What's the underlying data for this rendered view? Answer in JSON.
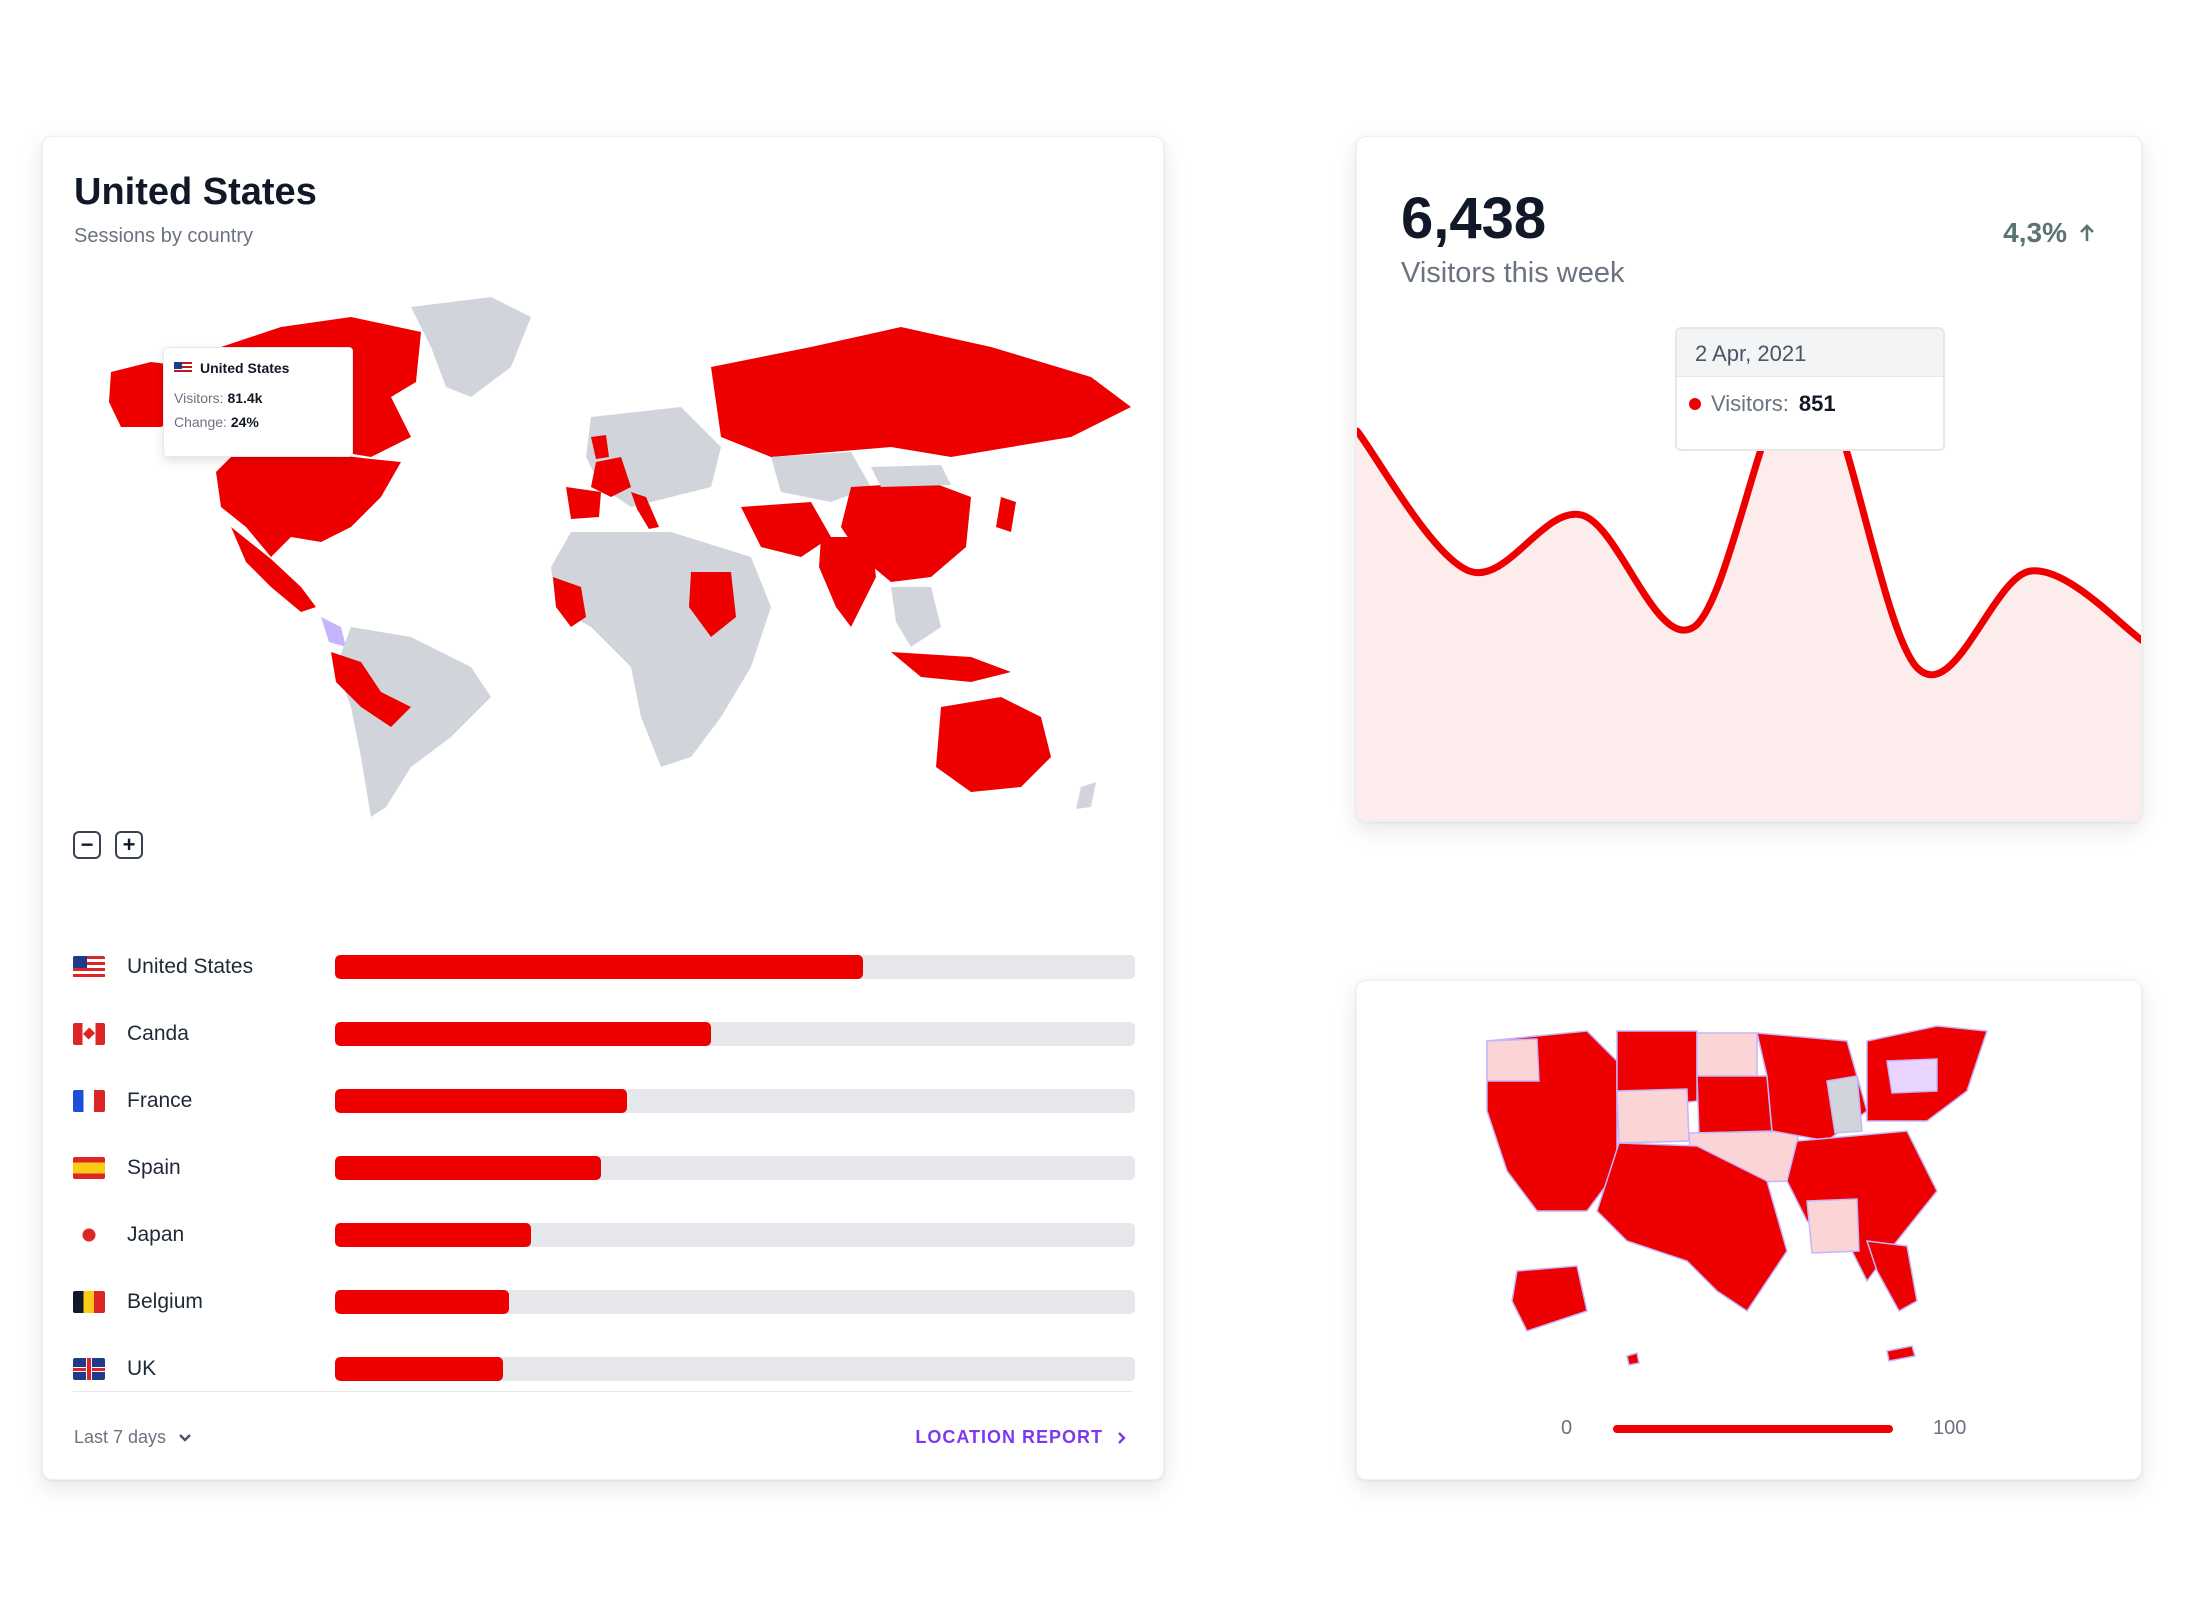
{
  "geo_card": {
    "title": "United States",
    "subtitle": "Sessions by country",
    "tooltip": {
      "country": "United States",
      "visitors_label": "Visitors:",
      "visitors_value": "81.4k",
      "change_label": "Change:",
      "change_value": "24%"
    },
    "zoom_out_label": "−",
    "zoom_in_label": "+",
    "countries": [
      {
        "name": "United States",
        "flag": "us-flag-icon",
        "share": 0.66
      },
      {
        "name": "Canda",
        "flag": "ca-flag-icon",
        "share": 0.47
      },
      {
        "name": "France",
        "flag": "fr-flag-icon",
        "share": 0.365
      },
      {
        "name": "Spain",
        "flag": "es-flag-icon",
        "share": 0.333
      },
      {
        "name": "Japan",
        "flag": "jp-flag-icon",
        "share": 0.245
      },
      {
        "name": "Belgium",
        "flag": "be-flag-icon",
        "share": 0.218
      },
      {
        "name": "UK",
        "flag": "uk-flag-icon",
        "share": 0.21
      }
    ],
    "range_label": "Last 7 days",
    "report_label": "LOCATION REPORT",
    "accent_color": "#ee0000",
    "link_color": "#7c3aed"
  },
  "visitors_card": {
    "value": "6,438",
    "label": "Visitors this week",
    "change": "4,3%",
    "tooltip": {
      "date": "2 Apr, 2021",
      "series_label": "Visitors:",
      "series_value": "851"
    }
  },
  "chart_data": {
    "type": "area",
    "title": "",
    "xlabel": "",
    "ylabel": "",
    "grid": false,
    "series": [
      {
        "values": [
          760,
          560,
          640,
          480,
          851,
          420,
          560,
          460
        ]
      }
    ],
    "ylim": [
      200,
      1000
    ],
    "color": "#ee0000",
    "fill": "#fdecec"
  },
  "us_card": {
    "scale_min": "0",
    "scale_max": "100"
  }
}
